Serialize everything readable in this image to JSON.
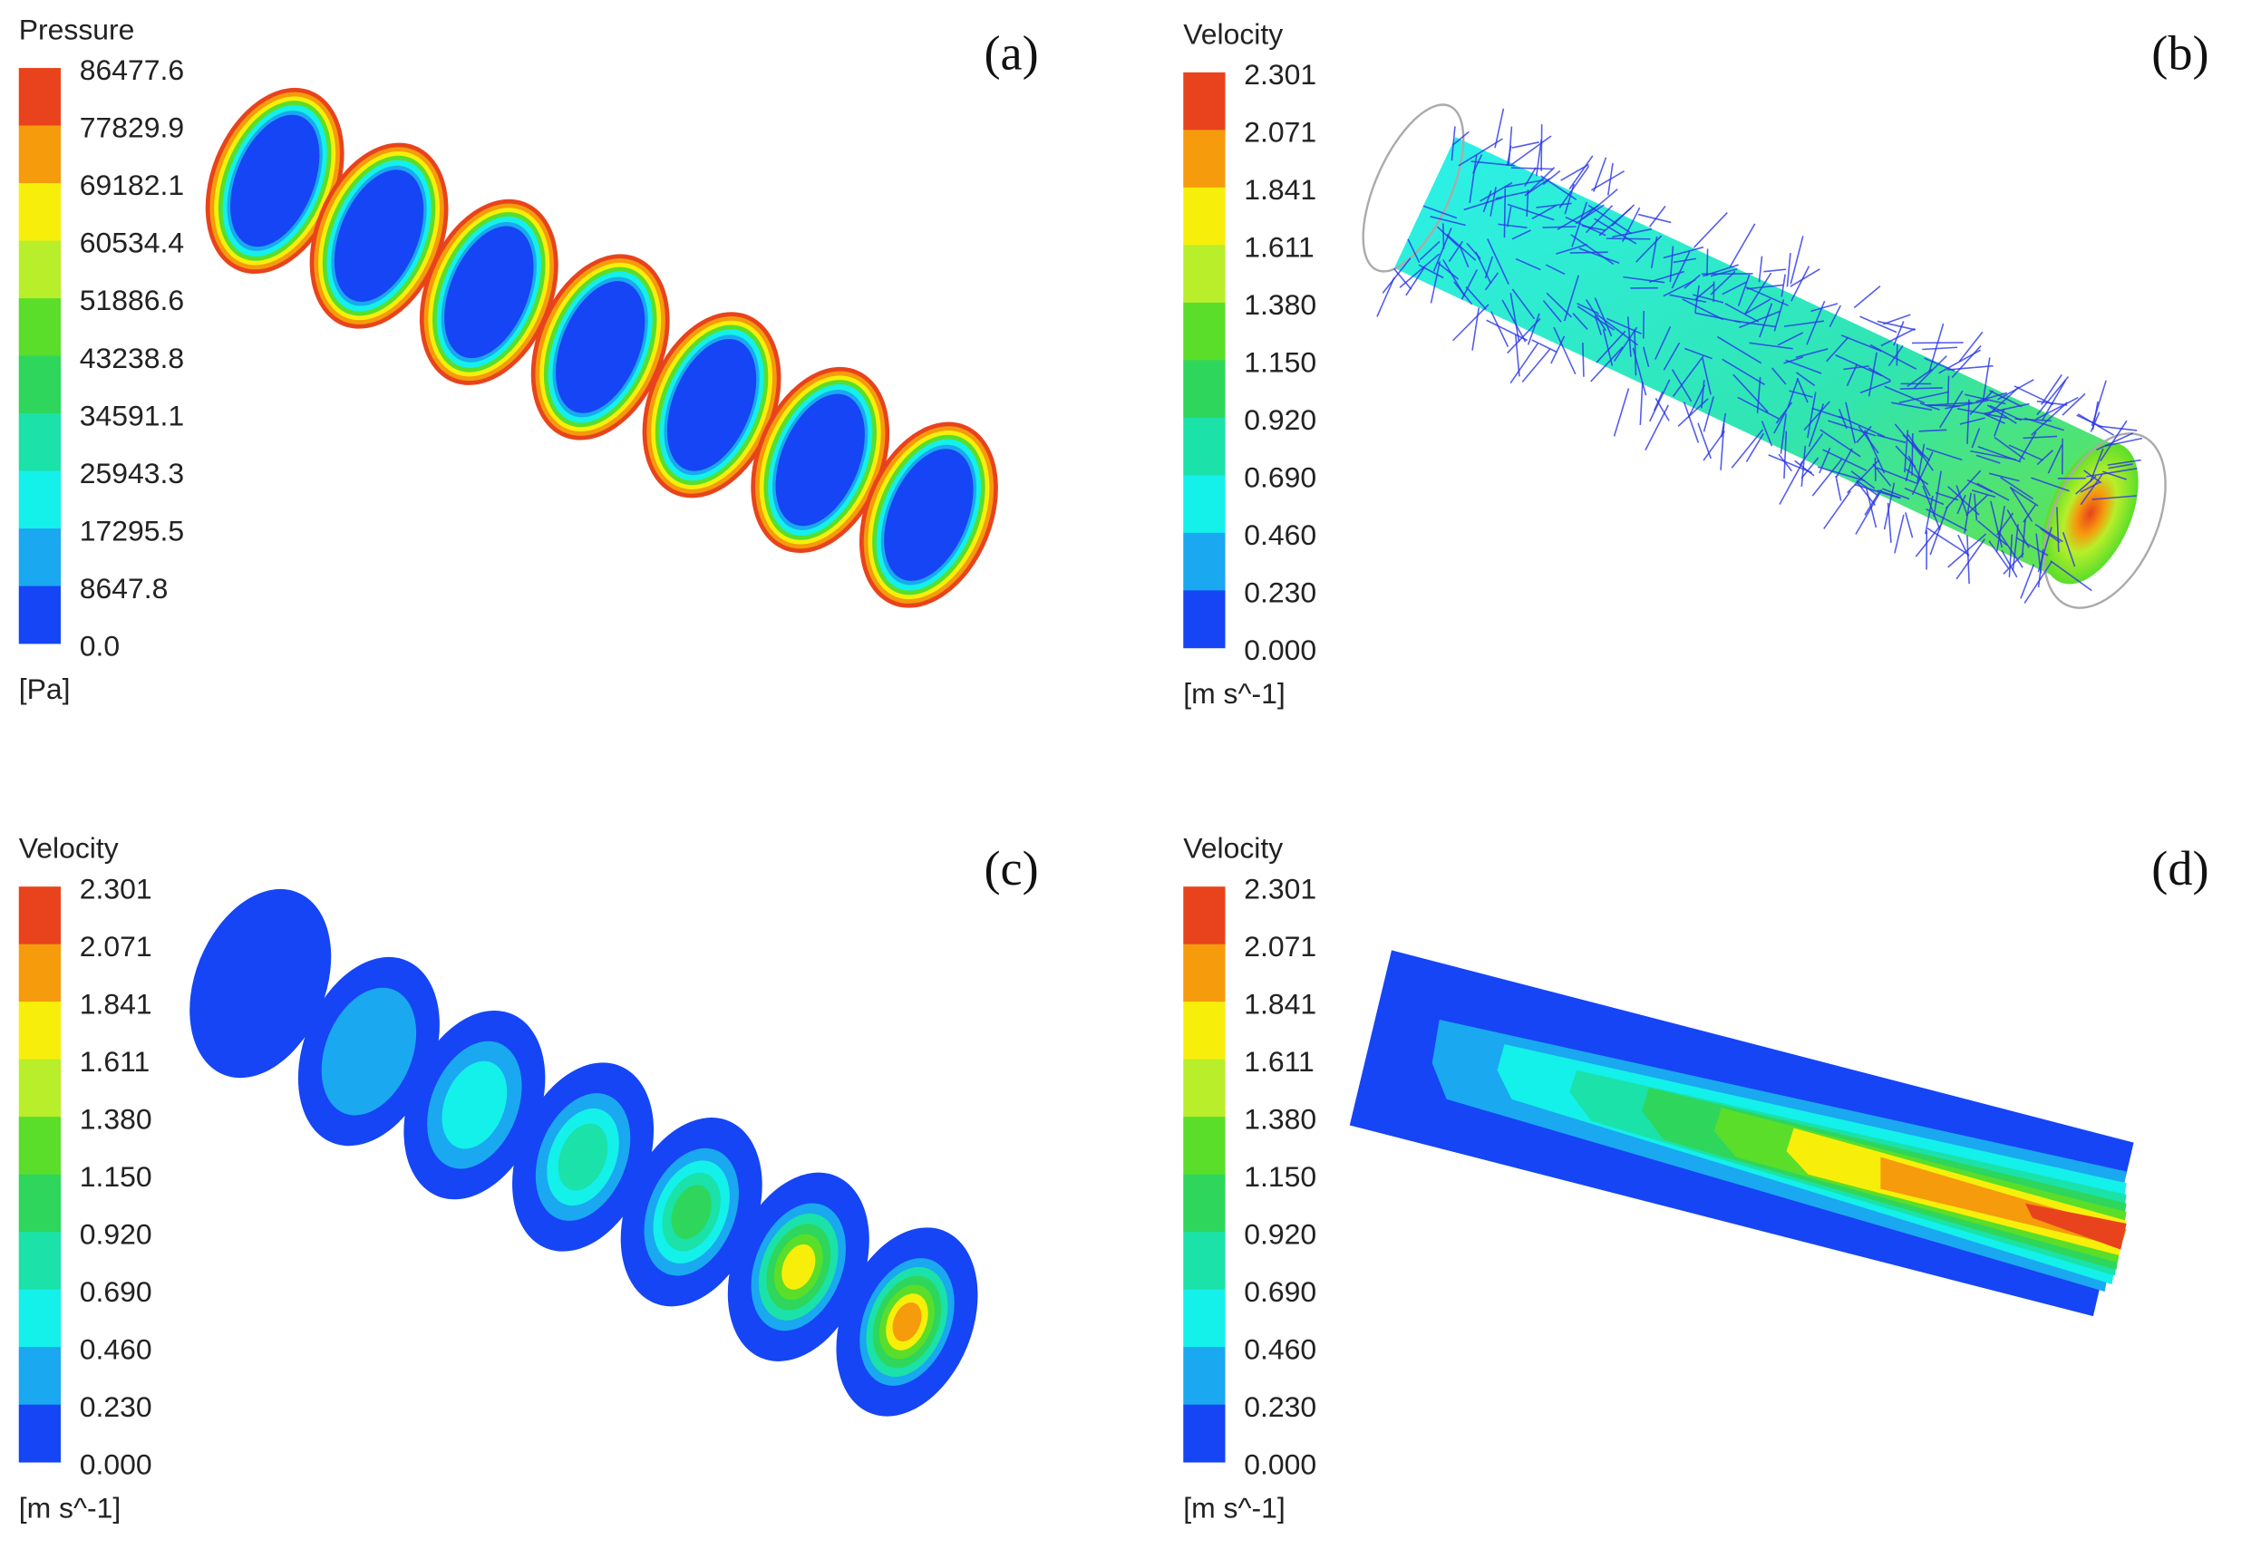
{
  "panels": [
    {
      "label": "(a)",
      "legend": {
        "title": "Pressure",
        "ticks": [
          "86477.6",
          "77829.9",
          "69182.1",
          "60534.4",
          "51886.6",
          "43238.8",
          "34591.1",
          "25943.3",
          "17295.5",
          "8647.8",
          "0.0"
        ],
        "unit": "[Pa]"
      }
    },
    {
      "label": "(b)",
      "legend": {
        "title": "Velocity",
        "ticks": [
          "2.301",
          "2.071",
          "1.841",
          "1.611",
          "1.380",
          "1.150",
          "0.920",
          "0.690",
          "0.460",
          "0.230",
          "0.000"
        ],
        "unit": "[m s^-1]"
      }
    },
    {
      "label": "(c)",
      "legend": {
        "title": "Velocity",
        "ticks": [
          "2.301",
          "2.071",
          "1.841",
          "1.611",
          "1.380",
          "1.150",
          "0.920",
          "0.690",
          "0.460",
          "0.230",
          "0.000"
        ],
        "unit": "[m s^-1]"
      }
    },
    {
      "label": "(d)",
      "legend": {
        "title": "Velocity",
        "ticks": [
          "2.301",
          "2.071",
          "1.841",
          "1.611",
          "1.380",
          "1.150",
          "0.920",
          "0.690",
          "0.460",
          "0.230",
          "0.000"
        ],
        "unit": "[m s^-1]"
      }
    }
  ]
}
